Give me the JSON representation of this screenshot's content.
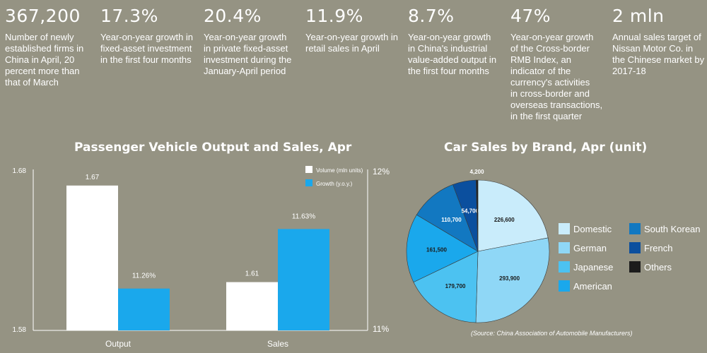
{
  "stats": [
    {
      "value": "367,200",
      "desc": "Number of newly\nestablished firms in\nChina in April, 20\npercent more than\nthat of March"
    },
    {
      "value": "17.3%",
      "desc": "Year-on-year growth in\nfixed-asset investment\nin the first four months"
    },
    {
      "value": "20.4%",
      "desc": "Year-on-year growth\nin private fixed-asset\ninvestment during the\nJanuary-April period"
    },
    {
      "value": "11.9%",
      "desc": "Year-on-year growth in\nretail sales in April"
    },
    {
      "value": "8.7%",
      "desc": "Year-on-year growth\nin China's industrial\nvalue-added output in\nthe first four months"
    },
    {
      "value": "47%",
      "desc": "Year-on-year growth\nof the Cross-border\nRMB Index, an\nindicator of the\ncurrency's activities\nin cross-border and\noverseas transactions,\nin the first quarter"
    },
    {
      "value": "2 mln",
      "desc": "Annual sales target of\nNissan Motor Co. in\nthe Chinese market by\n2017-18"
    }
  ],
  "source": "(Source: China Association of Automobile Manufacturers)",
  "colors": {
    "background": "#959383",
    "volume": "#ffffff",
    "growth": "#1aa8ec"
  },
  "chart_data": [
    {
      "type": "bar",
      "title": "Passenger Vehicle Output and Sales, Apr",
      "categories": [
        "Output",
        "Sales"
      ],
      "series": [
        {
          "name": "Volume (mln units)",
          "axis": "left",
          "values": [
            1.67,
            1.61
          ],
          "labels": [
            "1.67",
            "1.61"
          ]
        },
        {
          "name": "Growth (y.o.y.)",
          "axis": "right",
          "values": [
            11.26,
            11.63
          ],
          "labels": [
            "11.26%",
            "11.63%"
          ]
        }
      ],
      "y_left": {
        "min": 1.58,
        "max": 1.68,
        "ticks": [
          "1.58",
          "1.68"
        ]
      },
      "y_right": {
        "min": 11,
        "max": 12,
        "ticks": [
          "11%",
          "12%"
        ]
      },
      "legend_position": "top-right",
      "grid": false
    },
    {
      "type": "pie",
      "title": "Car Sales by Brand, Apr (unit)",
      "slices": [
        {
          "label": "Domestic",
          "value": 226600,
          "display": "226,600",
          "color": "#c9ecfb"
        },
        {
          "label": "German",
          "value": 293900,
          "display": "293,900",
          "color": "#8fd7f6"
        },
        {
          "label": "Japanese",
          "value": 179700,
          "display": "179,700",
          "color": "#4cc2f1"
        },
        {
          "label": "American",
          "value": 161500,
          "display": "161,500",
          "color": "#1aa8ec"
        },
        {
          "label": "South Korean",
          "value": 110700,
          "display": "110,700",
          "color": "#1278c1"
        },
        {
          "label": "French",
          "value": 54700,
          "display": "54,700",
          "color": "#0b4f9e"
        },
        {
          "label": "Others",
          "value": 4200,
          "display": "4,200",
          "color": "#1c1c1c"
        }
      ],
      "legend_position": "right"
    }
  ]
}
